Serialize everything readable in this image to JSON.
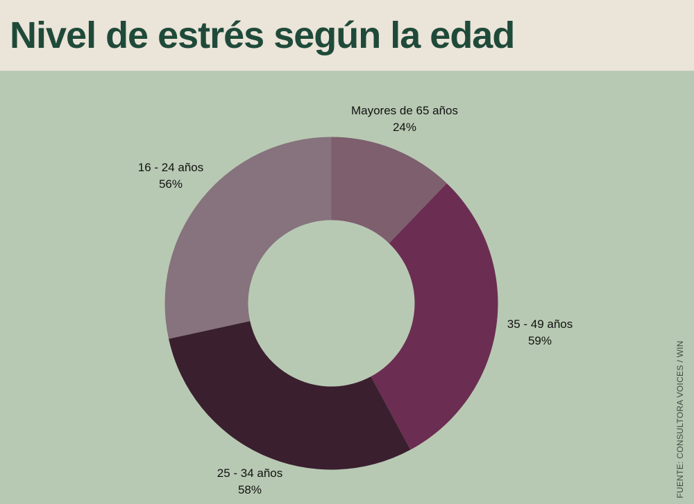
{
  "title": "Nivel de estrés según la edad",
  "source": "FUENTE: CONSULTORA VOICES / WIN",
  "chart_data": {
    "type": "pie",
    "donut": true,
    "title": "Nivel de estrés según la edad",
    "categories": [
      "Mayores de 65 años",
      "35 - 49 años",
      "25 - 34 años",
      "16 - 24 años"
    ],
    "values": [
      24,
      59,
      58,
      56
    ],
    "value_labels": [
      "24%",
      "59%",
      "58%",
      "56%"
    ],
    "colors": [
      "#7d5f6e",
      "#6b2d52",
      "#3a1f2f",
      "#86737d"
    ],
    "start_angle": "top, clockwise",
    "legend": "none (direct labels)"
  }
}
